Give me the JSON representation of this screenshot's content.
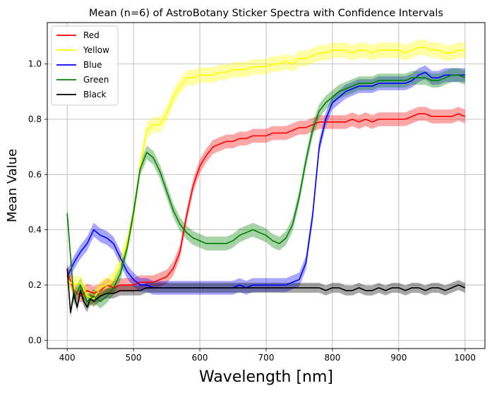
{
  "chart_data": {
    "type": "line",
    "title": "Mean (n=6) of AstroBotany Sticker Spectra with Confidence Intervals",
    "xlabel": "Wavelength [nm]",
    "ylabel": "Mean Value",
    "xlim": [
      370,
      1030
    ],
    "ylim": [
      -0.03,
      1.15
    ],
    "xticks": [
      400,
      500,
      600,
      700,
      800,
      900,
      1000
    ],
    "xtick_labels": [
      "400",
      "500",
      "600",
      "700",
      "800",
      "900",
      "1000"
    ],
    "yticks": [
      0.0,
      0.2,
      0.4,
      0.6,
      0.8,
      1.0
    ],
    "ytick_labels": [
      "0.0",
      "0.2",
      "0.4",
      "0.6",
      "0.8",
      "1.0"
    ],
    "grid": true,
    "legend_position": "top-left",
    "series": [
      {
        "name": "Red",
        "color": "#ff0000",
        "ci": 0.025,
        "points": [
          [
            400,
            0.25
          ],
          [
            410,
            0.18
          ],
          [
            420,
            0.16
          ],
          [
            430,
            0.18
          ],
          [
            440,
            0.17
          ],
          [
            450,
            0.18
          ],
          [
            460,
            0.2
          ],
          [
            470,
            0.19
          ],
          [
            480,
            0.2
          ],
          [
            490,
            0.2
          ],
          [
            500,
            0.2
          ],
          [
            510,
            0.21
          ],
          [
            520,
            0.21
          ],
          [
            530,
            0.21
          ],
          [
            540,
            0.22
          ],
          [
            550,
            0.23
          ],
          [
            560,
            0.26
          ],
          [
            570,
            0.32
          ],
          [
            580,
            0.45
          ],
          [
            590,
            0.56
          ],
          [
            600,
            0.63
          ],
          [
            610,
            0.67
          ],
          [
            620,
            0.7
          ],
          [
            630,
            0.71
          ],
          [
            640,
            0.72
          ],
          [
            650,
            0.72
          ],
          [
            660,
            0.73
          ],
          [
            670,
            0.73
          ],
          [
            680,
            0.74
          ],
          [
            690,
            0.74
          ],
          [
            700,
            0.74
          ],
          [
            710,
            0.75
          ],
          [
            720,
            0.75
          ],
          [
            730,
            0.75
          ],
          [
            740,
            0.76
          ],
          [
            750,
            0.77
          ],
          [
            760,
            0.77
          ],
          [
            770,
            0.78
          ],
          [
            780,
            0.79
          ],
          [
            790,
            0.79
          ],
          [
            800,
            0.79
          ],
          [
            810,
            0.79
          ],
          [
            820,
            0.79
          ],
          [
            830,
            0.8
          ],
          [
            840,
            0.79
          ],
          [
            850,
            0.8
          ],
          [
            860,
            0.79
          ],
          [
            870,
            0.8
          ],
          [
            880,
            0.8
          ],
          [
            890,
            0.8
          ],
          [
            900,
            0.8
          ],
          [
            910,
            0.8
          ],
          [
            920,
            0.81
          ],
          [
            930,
            0.82
          ],
          [
            940,
            0.82
          ],
          [
            950,
            0.81
          ],
          [
            960,
            0.81
          ],
          [
            970,
            0.81
          ],
          [
            980,
            0.81
          ],
          [
            990,
            0.82
          ],
          [
            1000,
            0.81
          ]
        ]
      },
      {
        "name": "Yellow",
        "color": "#ffff00",
        "ci": 0.028,
        "points": [
          [
            400,
            0.22
          ],
          [
            410,
            0.2
          ],
          [
            420,
            0.21
          ],
          [
            430,
            0.16
          ],
          [
            440,
            0.15
          ],
          [
            450,
            0.19
          ],
          [
            460,
            0.2
          ],
          [
            470,
            0.22
          ],
          [
            480,
            0.28
          ],
          [
            490,
            0.35
          ],
          [
            500,
            0.45
          ],
          [
            510,
            0.63
          ],
          [
            520,
            0.76
          ],
          [
            530,
            0.78
          ],
          [
            540,
            0.78
          ],
          [
            550,
            0.82
          ],
          [
            560,
            0.88
          ],
          [
            570,
            0.92
          ],
          [
            580,
            0.95
          ],
          [
            590,
            0.95
          ],
          [
            600,
            0.96
          ],
          [
            610,
            0.96
          ],
          [
            620,
            0.96
          ],
          [
            630,
            0.97
          ],
          [
            640,
            0.97
          ],
          [
            650,
            0.98
          ],
          [
            660,
            0.98
          ],
          [
            670,
            0.98
          ],
          [
            680,
            0.99
          ],
          [
            690,
            0.99
          ],
          [
            700,
            0.99
          ],
          [
            710,
            1.0
          ],
          [
            720,
            1.0
          ],
          [
            730,
            1.01
          ],
          [
            740,
            1.0
          ],
          [
            750,
            1.02
          ],
          [
            760,
            1.02
          ],
          [
            770,
            1.03
          ],
          [
            780,
            1.04
          ],
          [
            790,
            1.04
          ],
          [
            800,
            1.05
          ],
          [
            810,
            1.05
          ],
          [
            820,
            1.05
          ],
          [
            830,
            1.04
          ],
          [
            840,
            1.05
          ],
          [
            850,
            1.05
          ],
          [
            860,
            1.04
          ],
          [
            870,
            1.05
          ],
          [
            880,
            1.05
          ],
          [
            890,
            1.05
          ],
          [
            900,
            1.05
          ],
          [
            910,
            1.04
          ],
          [
            920,
            1.05
          ],
          [
            930,
            1.06
          ],
          [
            940,
            1.06
          ],
          [
            950,
            1.05
          ],
          [
            960,
            1.05
          ],
          [
            970,
            1.04
          ],
          [
            980,
            1.04
          ],
          [
            990,
            1.05
          ],
          [
            1000,
            1.05
          ]
        ]
      },
      {
        "name": "Blue",
        "color": "#0000ff",
        "ci": 0.025,
        "points": [
          [
            400,
            0.23
          ],
          [
            410,
            0.28
          ],
          [
            420,
            0.32
          ],
          [
            430,
            0.35
          ],
          [
            440,
            0.4
          ],
          [
            450,
            0.38
          ],
          [
            460,
            0.37
          ],
          [
            470,
            0.35
          ],
          [
            480,
            0.3
          ],
          [
            490,
            0.25
          ],
          [
            500,
            0.22
          ],
          [
            510,
            0.2
          ],
          [
            520,
            0.2
          ],
          [
            530,
            0.19
          ],
          [
            540,
            0.19
          ],
          [
            550,
            0.19
          ],
          [
            560,
            0.19
          ],
          [
            570,
            0.19
          ],
          [
            580,
            0.19
          ],
          [
            590,
            0.19
          ],
          [
            600,
            0.19
          ],
          [
            610,
            0.19
          ],
          [
            620,
            0.19
          ],
          [
            630,
            0.19
          ],
          [
            640,
            0.19
          ],
          [
            650,
            0.19
          ],
          [
            660,
            0.2
          ],
          [
            670,
            0.19
          ],
          [
            680,
            0.2
          ],
          [
            690,
            0.2
          ],
          [
            700,
            0.2
          ],
          [
            710,
            0.2
          ],
          [
            720,
            0.2
          ],
          [
            730,
            0.2
          ],
          [
            740,
            0.21
          ],
          [
            750,
            0.22
          ],
          [
            760,
            0.28
          ],
          [
            770,
            0.45
          ],
          [
            780,
            0.7
          ],
          [
            790,
            0.8
          ],
          [
            800,
            0.86
          ],
          [
            810,
            0.88
          ],
          [
            820,
            0.9
          ],
          [
            830,
            0.91
          ],
          [
            840,
            0.92
          ],
          [
            850,
            0.92
          ],
          [
            860,
            0.92
          ],
          [
            870,
            0.93
          ],
          [
            880,
            0.93
          ],
          [
            890,
            0.93
          ],
          [
            900,
            0.93
          ],
          [
            910,
            0.93
          ],
          [
            920,
            0.94
          ],
          [
            930,
            0.96
          ],
          [
            940,
            0.97
          ],
          [
            950,
            0.95
          ],
          [
            960,
            0.95
          ],
          [
            970,
            0.96
          ],
          [
            980,
            0.96
          ],
          [
            990,
            0.96
          ],
          [
            1000,
            0.96
          ]
        ]
      },
      {
        "name": "Green",
        "color": "#008000",
        "ci": 0.025,
        "points": [
          [
            400,
            0.46
          ],
          [
            410,
            0.15
          ],
          [
            420,
            0.2
          ],
          [
            430,
            0.14
          ],
          [
            440,
            0.16
          ],
          [
            450,
            0.14
          ],
          [
            460,
            0.16
          ],
          [
            470,
            0.19
          ],
          [
            480,
            0.24
          ],
          [
            490,
            0.33
          ],
          [
            500,
            0.46
          ],
          [
            510,
            0.62
          ],
          [
            520,
            0.68
          ],
          [
            530,
            0.66
          ],
          [
            540,
            0.61
          ],
          [
            550,
            0.54
          ],
          [
            560,
            0.47
          ],
          [
            570,
            0.42
          ],
          [
            580,
            0.39
          ],
          [
            590,
            0.37
          ],
          [
            600,
            0.36
          ],
          [
            610,
            0.35
          ],
          [
            620,
            0.35
          ],
          [
            630,
            0.35
          ],
          [
            640,
            0.35
          ],
          [
            650,
            0.36
          ],
          [
            660,
            0.38
          ],
          [
            670,
            0.39
          ],
          [
            680,
            0.4
          ],
          [
            690,
            0.39
          ],
          [
            700,
            0.38
          ],
          [
            710,
            0.36
          ],
          [
            720,
            0.35
          ],
          [
            730,
            0.37
          ],
          [
            740,
            0.42
          ],
          [
            750,
            0.52
          ],
          [
            760,
            0.65
          ],
          [
            770,
            0.76
          ],
          [
            780,
            0.83
          ],
          [
            790,
            0.86
          ],
          [
            800,
            0.88
          ],
          [
            810,
            0.9
          ],
          [
            820,
            0.91
          ],
          [
            830,
            0.92
          ],
          [
            840,
            0.93
          ],
          [
            850,
            0.93
          ],
          [
            860,
            0.93
          ],
          [
            870,
            0.94
          ],
          [
            880,
            0.94
          ],
          [
            890,
            0.94
          ],
          [
            900,
            0.94
          ],
          [
            910,
            0.94
          ],
          [
            920,
            0.95
          ],
          [
            930,
            0.95
          ],
          [
            940,
            0.95
          ],
          [
            950,
            0.94
          ],
          [
            960,
            0.94
          ],
          [
            970,
            0.95
          ],
          [
            980,
            0.96
          ],
          [
            990,
            0.96
          ],
          [
            1000,
            0.95
          ]
        ]
      },
      {
        "name": "Black",
        "color": "#000000",
        "ci": 0.018,
        "points": [
          [
            400,
            0.26
          ],
          [
            405,
            0.1
          ],
          [
            410,
            0.17
          ],
          [
            415,
            0.12
          ],
          [
            420,
            0.18
          ],
          [
            425,
            0.14
          ],
          [
            430,
            0.12
          ],
          [
            435,
            0.15
          ],
          [
            440,
            0.14
          ],
          [
            450,
            0.16
          ],
          [
            460,
            0.17
          ],
          [
            470,
            0.17
          ],
          [
            480,
            0.18
          ],
          [
            490,
            0.18
          ],
          [
            500,
            0.18
          ],
          [
            510,
            0.18
          ],
          [
            520,
            0.19
          ],
          [
            530,
            0.19
          ],
          [
            540,
            0.19
          ],
          [
            550,
            0.19
          ],
          [
            560,
            0.19
          ],
          [
            570,
            0.19
          ],
          [
            580,
            0.19
          ],
          [
            590,
            0.19
          ],
          [
            600,
            0.19
          ],
          [
            610,
            0.19
          ],
          [
            620,
            0.19
          ],
          [
            630,
            0.19
          ],
          [
            640,
            0.19
          ],
          [
            650,
            0.19
          ],
          [
            660,
            0.19
          ],
          [
            670,
            0.19
          ],
          [
            680,
            0.19
          ],
          [
            690,
            0.19
          ],
          [
            700,
            0.19
          ],
          [
            710,
            0.19
          ],
          [
            720,
            0.19
          ],
          [
            730,
            0.19
          ],
          [
            740,
            0.19
          ],
          [
            750,
            0.19
          ],
          [
            760,
            0.19
          ],
          [
            770,
            0.19
          ],
          [
            780,
            0.19
          ],
          [
            790,
            0.18
          ],
          [
            800,
            0.19
          ],
          [
            810,
            0.19
          ],
          [
            820,
            0.18
          ],
          [
            830,
            0.18
          ],
          [
            840,
            0.19
          ],
          [
            850,
            0.18
          ],
          [
            860,
            0.18
          ],
          [
            870,
            0.19
          ],
          [
            880,
            0.18
          ],
          [
            890,
            0.19
          ],
          [
            900,
            0.19
          ],
          [
            910,
            0.18
          ],
          [
            920,
            0.19
          ],
          [
            930,
            0.19
          ],
          [
            940,
            0.18
          ],
          [
            950,
            0.19
          ],
          [
            960,
            0.19
          ],
          [
            970,
            0.18
          ],
          [
            980,
            0.19
          ],
          [
            990,
            0.2
          ],
          [
            1000,
            0.19
          ]
        ]
      }
    ]
  }
}
